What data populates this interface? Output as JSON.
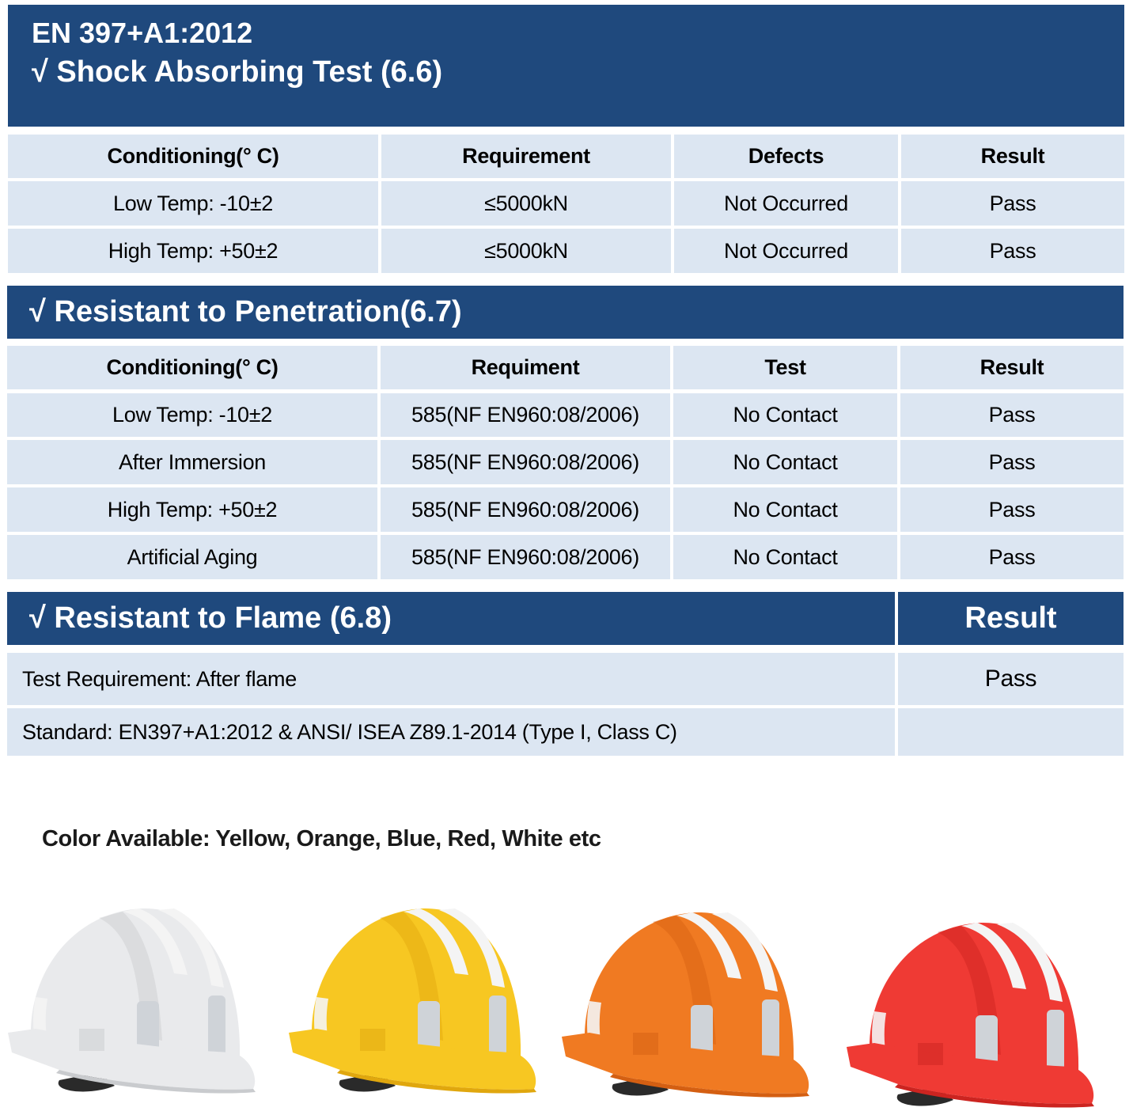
{
  "header": {
    "standard": "EN 397+A1:2012",
    "section1_title": "√  Shock Absorbing Test (6.6)"
  },
  "shock_table": {
    "columns": [
      "Conditioning(° C)",
      "Requirement",
      "Defects",
      "Result"
    ],
    "rows": [
      [
        "Low Temp: -10±2",
        "≤5000kN",
        "Not Occurred",
        "Pass"
      ],
      [
        "High Temp: +50±2",
        "≤5000kN",
        "Not Occurred",
        "Pass"
      ]
    ]
  },
  "penetration": {
    "title": "√  Resistant to Penetration(6.7)",
    "columns": [
      "Conditioning(° C)",
      "Requiment",
      "Test",
      "Result"
    ],
    "rows": [
      [
        "Low Temp: -10±2",
        "585(NF EN960:08/2006)",
        "No Contact",
        "Pass"
      ],
      [
        "After Immersion",
        "585(NF EN960:08/2006)",
        "No Contact",
        "Pass"
      ],
      [
        "High Temp: +50±2",
        "585(NF EN960:08/2006)",
        "No Contact",
        "Pass"
      ],
      [
        "Artificial Aging",
        "585(NF EN960:08/2006)",
        "No Contact",
        "Pass"
      ]
    ]
  },
  "flame": {
    "title": "√  Resistant to Flame (6.8)",
    "result_header": "Result",
    "rows": [
      [
        "Test Requirement: After flame",
        "Pass"
      ],
      [
        "Standard: EN397+A1:2012  & ANSI/ ISEA Z89.1-2014 (Type I, Class C)",
        ""
      ]
    ]
  },
  "colors_label": "Color Available: Yellow, Orange, Blue, Red, White etc",
  "helmets": [
    {
      "name": "white",
      "color": "#e9eaec",
      "shade": "#c9cbce"
    },
    {
      "name": "yellow",
      "color": "#f7c722",
      "shade": "#e0a70e"
    },
    {
      "name": "orange",
      "color": "#f07a22",
      "shade": "#d45f12"
    },
    {
      "name": "red",
      "color": "#ef3a34",
      "shade": "#cc2420"
    }
  ],
  "theme": {
    "band": "#1f497d",
    "cell": "#dce6f2"
  }
}
